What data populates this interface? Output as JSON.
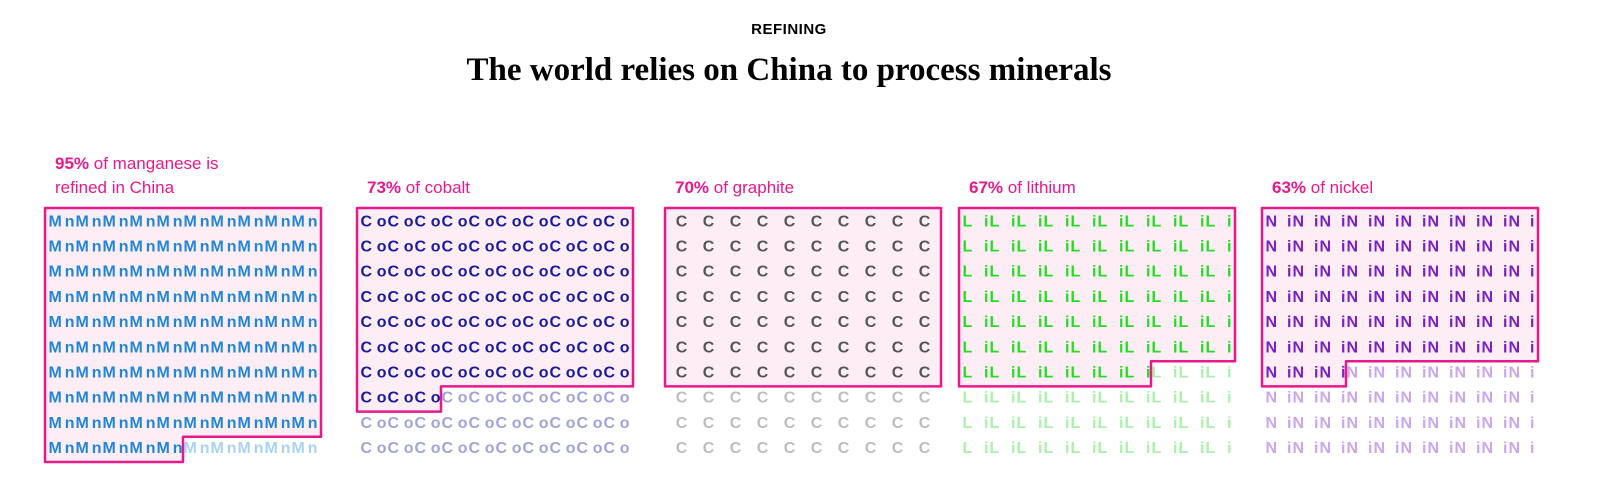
{
  "chart_data": {
    "type": "waffle",
    "kicker": "REFINING",
    "title": "The world relies on China to process minerals",
    "symbols": [
      "Mn",
      "Co",
      "C",
      "Li",
      "Ni"
    ],
    "captions": [
      "of manganese is refined in China",
      "of cobalt",
      "of graphite",
      "of lithium",
      "of nickel"
    ],
    "values": [
      95,
      73,
      70,
      67,
      63
    ],
    "value_labels": [
      "95%",
      "73%",
      "70%",
      "67%",
      "63%"
    ],
    "colors": [
      "#2186d6",
      "#1a1a9e",
      "#555555",
      "#22dd22",
      "#7a1fc2"
    ],
    "muted_colors": [
      "#a9d3f3",
      "#a3a3dc",
      "#bdbdbd",
      "#a9f0a9",
      "#cba6ea"
    ],
    "highlight_color": "#e8198b",
    "highlight_fill": "#fdeef6"
  }
}
